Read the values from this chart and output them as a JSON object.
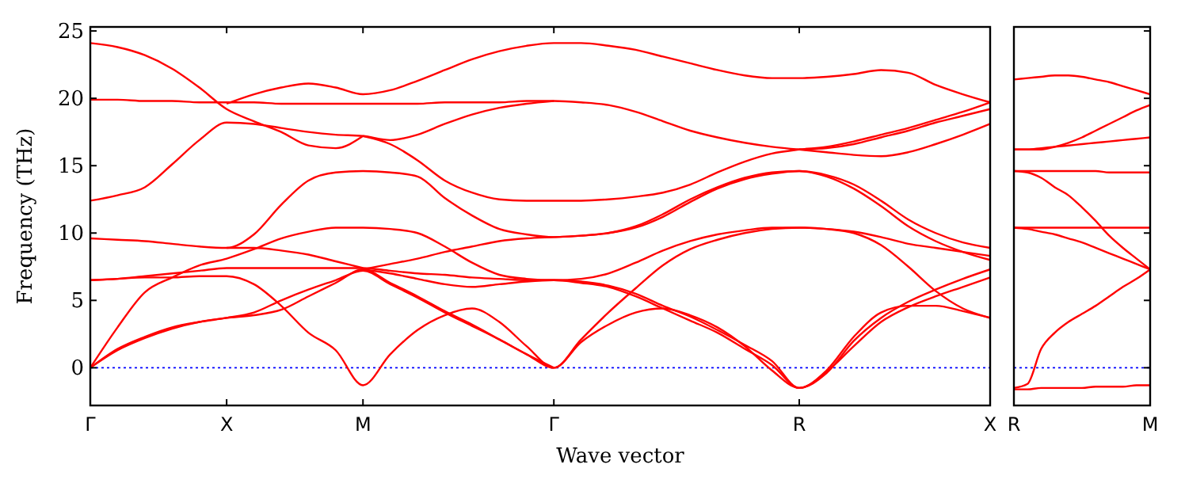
{
  "chart_data": [
    {
      "type": "line",
      "xlabel": "Wave vector",
      "ylabel": "Frequency (THz)",
      "ylim": [
        -2.8,
        25.3
      ],
      "categories": [
        "Γ",
        null,
        null,
        null,
        null,
        "X",
        null,
        null,
        null,
        null,
        "M",
        null,
        null,
        null,
        null,
        null,
        null,
        "Γ",
        null,
        null,
        null,
        null,
        null,
        null,
        null,
        null,
        "R",
        null,
        null,
        null,
        null,
        null,
        null,
        "X"
      ],
      "yticks": [
        0,
        5,
        10,
        15,
        20,
        25
      ],
      "marker": "none",
      "line_style": "solid",
      "ref_lines": [
        {
          "axis": "y",
          "value": 0,
          "color": "#0000ff",
          "line_style": "dotted"
        }
      ],
      "series": [
        {
          "color": "#ff0000",
          "values": [
            24.1,
            23.8,
            23.2,
            22.2,
            20.8,
            19.2,
            18.3,
            17.5,
            16.5,
            16.3,
            17.2,
            null,
            null,
            null,
            null,
            null,
            null,
            null,
            null,
            null,
            null,
            null,
            null,
            null,
            null,
            null,
            null,
            null,
            null,
            null,
            null,
            null,
            null,
            null
          ]
        },
        {
          "color": "#ff0000",
          "values": [
            19.9,
            19.9,
            19.8,
            19.8,
            19.7,
            19.7,
            19.7,
            19.6,
            19.6,
            19.6,
            19.6,
            19.6,
            19.6,
            19.7,
            19.7,
            19.7,
            19.8,
            19.8,
            19.7,
            19.5,
            19.0,
            18.3,
            17.6,
            17.1,
            16.7,
            16.4,
            16.2,
            null,
            null,
            null,
            null,
            null,
            null,
            null
          ]
        },
        {
          "color": "#ff0000",
          "values": [
            null,
            null,
            null,
            null,
            null,
            19.6,
            20.3,
            20.8,
            21.1,
            20.8,
            20.3,
            20.6,
            21.3,
            22.1,
            22.9,
            23.5,
            23.9,
            24.1,
            24.1,
            23.9,
            23.6,
            23.1,
            22.6,
            22.1,
            21.7,
            21.5,
            21.5,
            21.6,
            21.8,
            22.1,
            21.9,
            21.0,
            20.3,
            19.7
          ]
        },
        {
          "color": "#ff0000",
          "values": [
            12.4,
            12.8,
            13.4,
            15.1,
            16.9,
            18.2,
            18.1,
            17.8,
            17.5,
            17.3,
            17.2,
            16.9,
            17.3,
            18.1,
            18.8,
            19.3,
            19.6,
            19.8,
            null,
            null,
            null,
            null,
            null,
            null,
            null,
            null,
            null,
            null,
            null,
            null,
            null,
            null,
            null,
            null
          ]
        },
        {
          "color": "#ff0000",
          "values": [
            null,
            null,
            null,
            null,
            null,
            null,
            null,
            null,
            null,
            null,
            17.2,
            16.6,
            15.4,
            13.9,
            13.0,
            12.5,
            12.4,
            12.4,
            12.4,
            12.5,
            12.7,
            13.0,
            13.6,
            14.5,
            15.3,
            15.9,
            16.2,
            16.4,
            16.8,
            17.3,
            17.8,
            18.4,
            19.0,
            19.7
          ]
        },
        {
          "color": "#ff0000",
          "values": [
            null,
            null,
            null,
            null,
            null,
            null,
            null,
            null,
            null,
            null,
            null,
            null,
            null,
            null,
            null,
            null,
            null,
            null,
            null,
            null,
            null,
            null,
            null,
            null,
            null,
            null,
            16.2,
            16.3,
            16.6,
            17.1,
            17.6,
            18.2,
            18.7,
            19.2
          ]
        },
        {
          "color": "#ff0000",
          "values": [
            null,
            null,
            null,
            null,
            null,
            null,
            null,
            null,
            null,
            null,
            null,
            null,
            null,
            null,
            null,
            null,
            null,
            null,
            null,
            null,
            null,
            null,
            null,
            null,
            null,
            null,
            16.2,
            16.0,
            15.8,
            15.7,
            16.0,
            16.6,
            17.3,
            18.1
          ]
        },
        {
          "color": "#ff0000",
          "values": [
            9.6,
            9.5,
            9.4,
            9.2,
            9.0,
            8.9,
            9.9,
            12.1,
            13.9,
            14.5,
            14.6,
            14.5,
            14.2,
            12.6,
            11.3,
            10.3,
            9.9,
            9.7,
            9.8,
            10.0,
            10.5,
            11.4,
            12.5,
            13.4,
            14.1,
            14.5,
            14.6,
            14.3,
            13.6,
            12.4,
            11.0,
            10.0,
            9.3,
            8.9
          ]
        },
        {
          "color": "#ff0000",
          "values": [
            null,
            null,
            null,
            null,
            null,
            null,
            null,
            null,
            null,
            null,
            7.3,
            7.7,
            8.1,
            8.6,
            9.0,
            9.4,
            9.6,
            9.7,
            9.8,
            10.0,
            10.4,
            11.2,
            12.3,
            13.3,
            14.0,
            14.4,
            14.6,
            14.2,
            13.3,
            12.0,
            10.5,
            9.4,
            8.6,
            8.0
          ]
        },
        {
          "color": "#ff0000",
          "values": [
            0,
            3.0,
            5.6,
            6.7,
            7.6,
            8.1,
            8.8,
            9.6,
            10.1,
            10.4,
            10.4,
            10.3,
            10.0,
            9.0,
            7.8,
            6.9,
            6.6,
            6.5,
            6.6,
            7.0,
            7.8,
            8.7,
            9.4,
            9.9,
            10.2,
            10.4,
            10.4,
            10.3,
            10.1,
            9.7,
            9.2,
            8.9,
            8.6,
            8.3
          ]
        },
        {
          "color": "#ff0000",
          "values": [
            6.5,
            6.6,
            6.8,
            7.0,
            7.2,
            7.4,
            7.4,
            7.4,
            7.4,
            7.4,
            7.4,
            7.2,
            7.0,
            6.9,
            6.7,
            6.6,
            6.5,
            6.5,
            6.4,
            6.1,
            5.5,
            4.6,
            3.8,
            2.8,
            1.7,
            0.5,
            -1.5,
            -0.4,
            2.0,
            3.7,
            4.9,
            5.8,
            6.6,
            7.3
          ]
        },
        {
          "color": "#ff0000",
          "values": [
            6.5,
            6.6,
            6.7,
            6.7,
            6.8,
            6.8,
            6.2,
            4.6,
            2.6,
            1.3,
            -1.3,
            1.0,
            2.8,
            3.9,
            4.4,
            3.4,
            1.6,
            0,
            1.9,
            3.2,
            4.1,
            4.4,
            3.9,
            3.0,
            1.6,
            -0.2,
            -1.5,
            -0.3,
            1.6,
            3.4,
            4.5,
            5.3,
            6.0,
            6.7
          ]
        },
        {
          "color": "#ff0000",
          "values": [
            0,
            1.4,
            2.3,
            3.0,
            3.4,
            3.7,
            4.1,
            5.0,
            5.8,
            6.5,
            7.2,
            6.2,
            5.2,
            4.1,
            3.1,
            2.1,
            1.0,
            0,
            2.1,
            4.1,
            5.9,
            7.6,
            8.8,
            9.5,
            10.0,
            10.3,
            10.4,
            10.3,
            10.0,
            9.1,
            7.5,
            5.7,
            4.4,
            3.7
          ]
        },
        {
          "color": "#ff0000",
          "values": [
            0,
            1.3,
            2.2,
            2.9,
            3.4,
            3.7,
            3.9,
            4.3,
            5.3,
            6.3,
            7.3,
            6.3,
            5.3,
            4.2,
            3.2,
            2.1,
            1.0,
            0,
            null,
            null,
            null,
            null,
            null,
            null,
            null,
            null,
            null,
            null,
            null,
            null,
            null,
            null,
            null,
            null
          ]
        },
        {
          "color": "#ff0000",
          "values": [
            null,
            null,
            null,
            null,
            null,
            null,
            null,
            null,
            null,
            null,
            7.3,
            7.0,
            6.6,
            6.2,
            6.0,
            6.2,
            6.4,
            6.5,
            6.3,
            6.0,
            5.3,
            4.4,
            3.5,
            2.6,
            1.4,
            0.2,
            -1.5,
            -0.2,
            2.3,
            4.1,
            4.6,
            4.6,
            4.2,
            3.7
          ]
        },
        {
          "color": "#ff0000",
          "values": [
            null,
            null,
            null,
            null,
            null,
            8.9,
            8.9,
            8.7,
            8.4,
            7.9,
            7.4,
            null,
            null,
            null,
            null,
            null,
            null,
            null,
            null,
            null,
            null,
            null,
            null,
            null,
            null,
            null,
            null,
            null,
            null,
            null,
            null,
            null,
            null,
            null
          ]
        }
      ]
    },
    {
      "type": "line",
      "ylim": [
        -2.8,
        25.3
      ],
      "categories": [
        "R",
        null,
        null,
        null,
        null,
        null,
        null,
        null,
        null,
        null,
        "M"
      ],
      "yticks": [
        0,
        5,
        10,
        15,
        20,
        25
      ],
      "tick_labels": "x",
      "marker": "none",
      "line_style": "solid",
      "ref_lines": [
        {
          "axis": "y",
          "value": 0,
          "color": "#0000ff",
          "line_style": "dotted"
        }
      ],
      "series": [
        {
          "color": "#ff0000",
          "values": [
            21.4,
            21.5,
            21.6,
            21.7,
            21.7,
            21.6,
            21.4,
            21.2,
            20.9,
            20.6,
            20.3
          ]
        },
        {
          "color": "#ff0000",
          "values": [
            16.2,
            16.2,
            16.2,
            16.4,
            16.7,
            17.1,
            17.6,
            18.1,
            18.6,
            19.1,
            19.5
          ]
        },
        {
          "color": "#ff0000",
          "values": [
            16.2,
            16.2,
            16.3,
            16.4,
            16.5,
            16.6,
            16.7,
            16.8,
            16.9,
            17.0,
            17.1
          ]
        },
        {
          "color": "#ff0000",
          "values": [
            14.6,
            14.6,
            14.6,
            14.6,
            14.6,
            14.6,
            14.6,
            14.5,
            14.5,
            14.5,
            14.5
          ]
        },
        {
          "color": "#ff0000",
          "values": [
            14.6,
            14.5,
            14.1,
            13.4,
            12.8,
            11.9,
            10.9,
            9.8,
            8.9,
            8.1,
            7.3
          ]
        },
        {
          "color": "#ff0000",
          "values": [
            10.4,
            10.4,
            10.4,
            10.4,
            10.4,
            10.4,
            10.4,
            10.4,
            10.4,
            10.4,
            10.4
          ]
        },
        {
          "color": "#ff0000",
          "values": [
            10.4,
            10.3,
            10.1,
            9.9,
            9.6,
            9.3,
            8.9,
            8.5,
            8.1,
            7.7,
            7.3
          ]
        },
        {
          "color": "#ff0000",
          "values": [
            -1.5,
            -1.2,
            1.4,
            2.6,
            3.4,
            4.0,
            4.6,
            5.3,
            6.0,
            6.6,
            7.3
          ]
        },
        {
          "color": "#ff0000",
          "values": [
            -1.6,
            -1.6,
            -1.5,
            -1.5,
            -1.5,
            -1.5,
            -1.4,
            -1.4,
            -1.4,
            -1.3,
            -1.3
          ]
        }
      ]
    }
  ]
}
